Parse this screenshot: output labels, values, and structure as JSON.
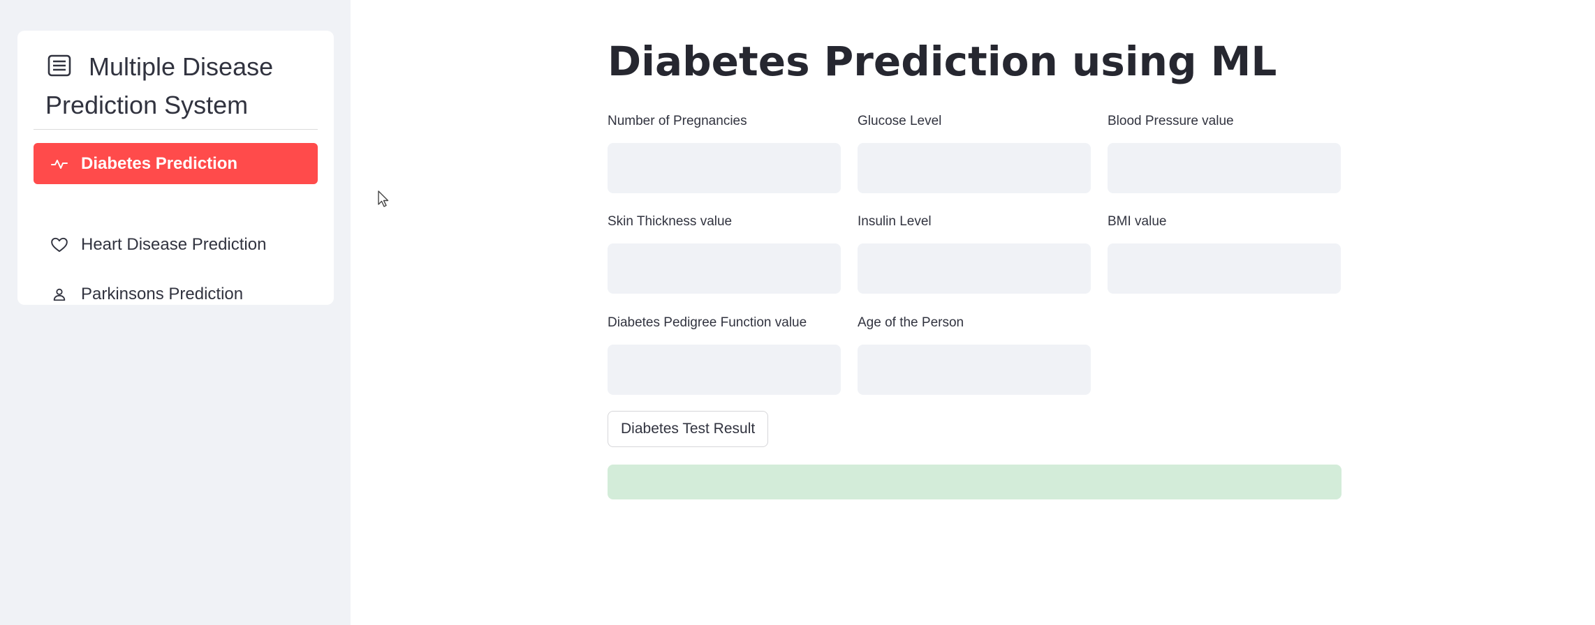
{
  "sidebar": {
    "title": "Multiple Disease Prediction System",
    "title_icon": "list-icon",
    "items": [
      {
        "label": "Diabetes Prediction",
        "icon": "activity-icon",
        "active": true
      },
      {
        "label": "Heart Disease Prediction",
        "icon": "heart-icon",
        "active": false
      },
      {
        "label": "Parkinsons Prediction",
        "icon": "person-icon",
        "active": false
      }
    ]
  },
  "main": {
    "title": "Diabetes Prediction using ML",
    "fields": [
      {
        "label": "Number of Pregnancies",
        "value": ""
      },
      {
        "label": "Glucose Level",
        "value": ""
      },
      {
        "label": "Blood Pressure value",
        "value": ""
      },
      {
        "label": "Skin Thickness value",
        "value": ""
      },
      {
        "label": "Insulin Level",
        "value": ""
      },
      {
        "label": "BMI value",
        "value": ""
      },
      {
        "label": "Diabetes Pedigree Function value",
        "value": ""
      },
      {
        "label": "Age of the Person",
        "value": ""
      }
    ],
    "button_label": "Diabetes Test Result",
    "result_text": ""
  },
  "colors": {
    "accent": "#ff4b4b",
    "sidebar_bg": "#f0f2f6",
    "input_bg": "#f0f2f6",
    "success_bg": "#d3ecd9"
  }
}
